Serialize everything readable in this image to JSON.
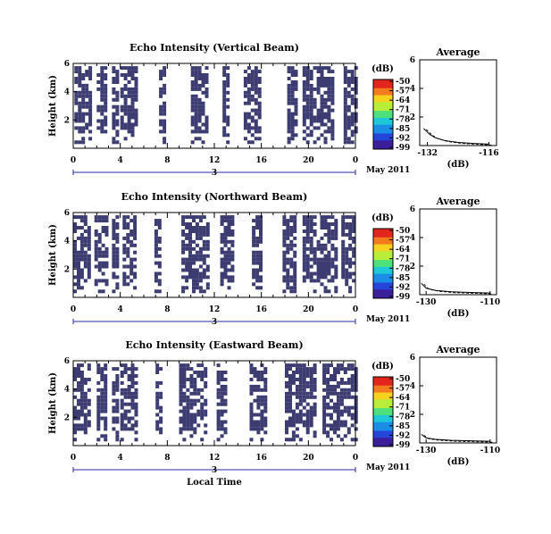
{
  "colors": {
    "echo": "#3c3c72",
    "date_line": "#2a2aa0",
    "colorbar": [
      "#3a1e9a",
      "#2546d8",
      "#1a8ee6",
      "#1fc8d8",
      "#4ee07a",
      "#b8ee3a",
      "#f6d21e",
      "#f47a1e",
      "#e2261e"
    ]
  },
  "chart_data": [
    {
      "type": "heatmap",
      "title": "Echo Intensity (Vertical Beam)",
      "ylabel": "Height (km)",
      "y_ticks": [
        "2",
        "4",
        "6"
      ],
      "x_ticks": [
        "0",
        "4",
        "8",
        "12",
        "16",
        "20",
        "0"
      ],
      "date_tick": "3",
      "date_label": "May 2011",
      "xlim": [
        0,
        24
      ],
      "ylim": [
        0,
        6
      ],
      "colorbar": {
        "unit": "(dB)",
        "ticks": [
          "-50",
          "-57",
          "-64",
          "-71",
          "-78",
          "-85",
          "-92",
          "-99"
        ]
      },
      "echo_bands": [
        [
          0.1,
          1.5
        ],
        [
          2.0,
          2.8
        ],
        [
          3.3,
          3.7
        ],
        [
          4.0,
          5.2
        ],
        [
          7.3,
          7.7
        ],
        [
          10.0,
          11.5
        ],
        [
          12.7,
          13.2
        ],
        [
          14.5,
          16.0
        ],
        [
          18.2,
          19.0
        ],
        [
          19.5,
          22.0
        ],
        [
          23.0,
          24.0
        ]
      ],
      "profile": {
        "title": "Average",
        "xlabel": "(dB)",
        "x_ticks": [
          "-132",
          "-116"
        ],
        "xlim": [
          -134,
          -114
        ],
        "y_ticks": [
          "2",
          "4",
          "6"
        ],
        "ylim": [
          0,
          6
        ],
        "points": [
          [
            -133.0,
            1.2
          ],
          [
            -131.5,
            0.8
          ],
          [
            -130.0,
            0.55
          ],
          [
            -127.5,
            0.35
          ],
          [
            -124.0,
            0.22
          ],
          [
            -120.0,
            0.15
          ],
          [
            -116.0,
            0.1
          ]
        ]
      }
    },
    {
      "type": "heatmap",
      "title": "Echo Intensity (Northward Beam)",
      "ylabel": "Height (km)",
      "y_ticks": [
        "2",
        "4",
        "6"
      ],
      "x_ticks": [
        "0",
        "4",
        "8",
        "12",
        "16",
        "20",
        "0"
      ],
      "date_tick": "3",
      "date_label": "May 2011",
      "xlim": [
        0,
        24
      ],
      "ylim": [
        0,
        6
      ],
      "colorbar": {
        "unit": "(dB)",
        "ticks": [
          "-50",
          "-57",
          "-64",
          "-71",
          "-78",
          "-85",
          "-92",
          "-99"
        ]
      },
      "echo_bands": [
        [
          0.0,
          1.5
        ],
        [
          1.8,
          2.8
        ],
        [
          3.3,
          3.8
        ],
        [
          4.2,
          5.2
        ],
        [
          6.9,
          7.3
        ],
        [
          9.2,
          11.5
        ],
        [
          12.5,
          13.5
        ],
        [
          15.2,
          16.0
        ],
        [
          17.8,
          19.0
        ],
        [
          19.5,
          22.5
        ],
        [
          22.8,
          24.0
        ]
      ],
      "profile": {
        "title": "Average",
        "xlabel": "(dB)",
        "x_ticks": [
          "-130",
          "-110"
        ],
        "xlim": [
          -132,
          -108
        ],
        "y_ticks": [
          "2",
          "4",
          "6"
        ],
        "ylim": [
          0,
          6
        ],
        "points": [
          [
            -131.5,
            0.8
          ],
          [
            -130.0,
            0.45
          ],
          [
            -127.0,
            0.3
          ],
          [
            -122.0,
            0.2
          ],
          [
            -115.0,
            0.15
          ],
          [
            -110.0,
            0.12
          ]
        ]
      }
    },
    {
      "type": "heatmap",
      "title": "Echo Intensity (Eastward Beam)",
      "ylabel": "Height (km)",
      "y_ticks": [
        "2",
        "4",
        "6"
      ],
      "x_ticks": [
        "0",
        "4",
        "8",
        "12",
        "16",
        "20",
        "0"
      ],
      "date_tick": "3",
      "date_label": "May 2011",
      "xlabel": "Local Time",
      "xlim": [
        0,
        24
      ],
      "ylim": [
        0,
        6
      ],
      "colorbar": {
        "unit": "(dB)",
        "ticks": [
          "-50",
          "-57",
          "-64",
          "-71",
          "-78",
          "-85",
          "-92",
          "-99"
        ]
      },
      "echo_bands": [
        [
          0.0,
          1.5
        ],
        [
          2.0,
          2.8
        ],
        [
          3.3,
          3.7
        ],
        [
          4.0,
          5.2
        ],
        [
          7.0,
          7.4
        ],
        [
          9.0,
          11.2
        ],
        [
          12.2,
          13.0
        ],
        [
          15.0,
          16.5
        ],
        [
          18.0,
          20.5
        ],
        [
          21.2,
          24.0
        ]
      ],
      "profile": {
        "title": "Average",
        "xlabel": "(dB)",
        "x_ticks": [
          "-130",
          "-110"
        ],
        "xlim": [
          -132,
          -108
        ],
        "y_ticks": [
          "2",
          "4",
          "6"
        ],
        "ylim": [
          0,
          6
        ],
        "points": [
          [
            -131.5,
            0.6
          ],
          [
            -130.0,
            0.35
          ],
          [
            -127.0,
            0.25
          ],
          [
            -122.0,
            0.18
          ],
          [
            -115.0,
            0.14
          ],
          [
            -110.0,
            0.12
          ]
        ]
      }
    }
  ]
}
